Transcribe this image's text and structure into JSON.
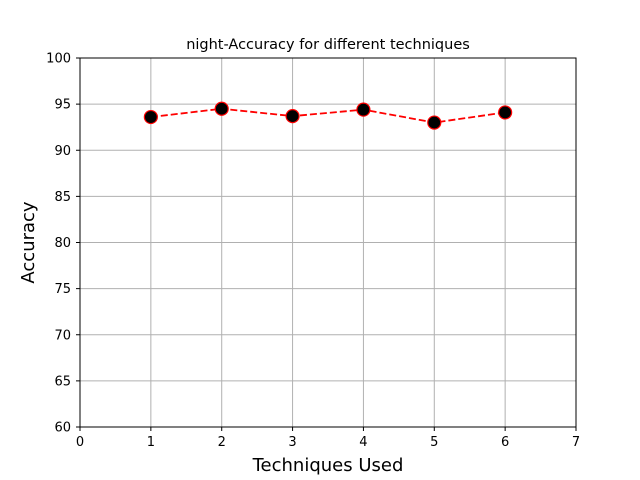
{
  "chart_data": {
    "type": "line",
    "title": "night-Accuracy for different techniques",
    "xlabel": "Techniques Used",
    "ylabel": "Accuracy",
    "xlim": [
      0,
      7
    ],
    "ylim": [
      60,
      100
    ],
    "xticks": [
      0,
      1,
      2,
      3,
      4,
      5,
      6,
      7
    ],
    "yticks": [
      60,
      65,
      70,
      75,
      80,
      85,
      90,
      95,
      100
    ],
    "grid": true,
    "series": [
      {
        "x": [
          1,
          2,
          3,
          4,
          5,
          6
        ],
        "y": [
          93.6,
          94.5,
          93.7,
          94.4,
          93.0,
          94.1
        ],
        "line_color": "#ff0000",
        "line_style": "dashed",
        "marker": "circle",
        "marker_face_color": "#000000",
        "marker_edge_color": "#ff0000"
      }
    ]
  }
}
